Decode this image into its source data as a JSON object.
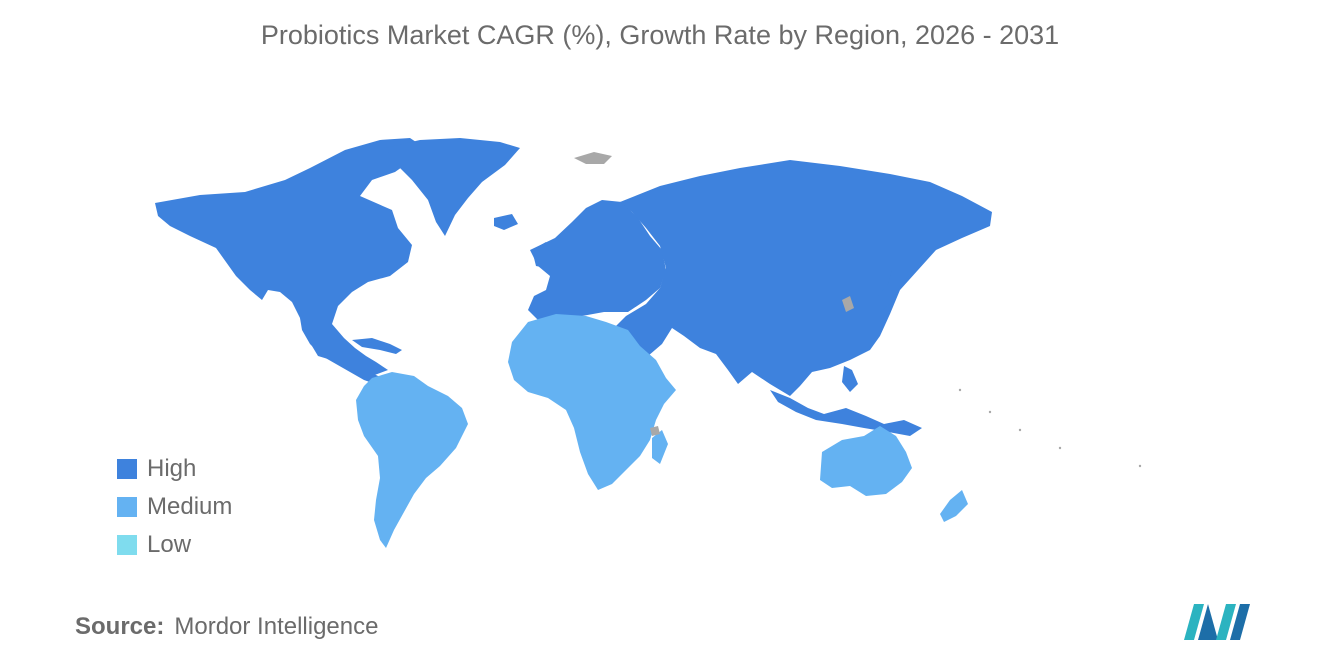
{
  "title": "Probiotics Market CAGR (%), Growth Rate by Region, 2026 - 2031",
  "colors": {
    "high": "#3e82dd",
    "medium": "#64b2f2",
    "low": "#7fdcee",
    "no_data": "#a8a8a8",
    "text": "#6b6b6b"
  },
  "legend": [
    {
      "label": "High",
      "color": "#3e82dd"
    },
    {
      "label": "Medium",
      "color": "#64b2f2"
    },
    {
      "label": "Low",
      "color": "#7fdcee"
    }
  ],
  "regions": [
    {
      "name": "North America",
      "level": "High"
    },
    {
      "name": "Europe",
      "level": "High"
    },
    {
      "name": "Asia-Pacific",
      "level": "High"
    },
    {
      "name": "South America",
      "level": "Medium"
    },
    {
      "name": "Middle East and Africa",
      "level": "Medium"
    },
    {
      "name": "Oceania",
      "level": "Medium"
    }
  ],
  "source": {
    "label": "Source:",
    "value": "Mordor Intelligence"
  },
  "logo_icon": "mordor-intelligence-logo-icon"
}
